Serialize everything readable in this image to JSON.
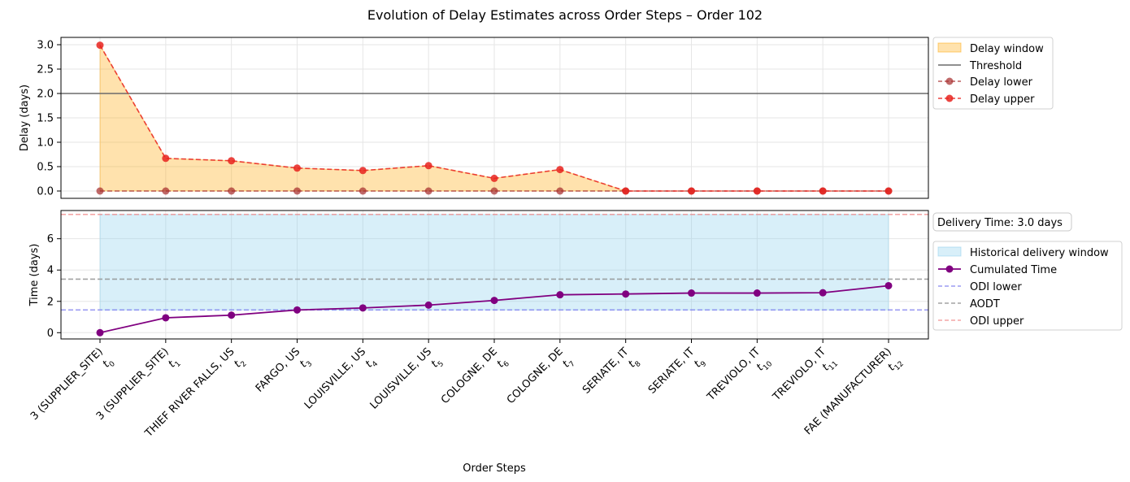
{
  "chart_data": {
    "type": "line",
    "title": "Evolution of Delay Estimates across Order Steps – Order 102",
    "xlabel": "Order Steps",
    "steps": [
      {
        "label": "3 (SUPPLIER_SITE)",
        "t": "t",
        "sub": "0",
        "color": "#b22222"
      },
      {
        "label": "3 (SUPPLIER_SITE)",
        "t": "t",
        "sub": "1",
        "color": "#000000"
      },
      {
        "label": "THIEF RIVER FALLS, US",
        "t": "t",
        "sub": "2",
        "color": "#000000"
      },
      {
        "label": "FARGO, US",
        "t": "t",
        "sub": "3",
        "color": "#000000"
      },
      {
        "label": "LOUISVILLE, US",
        "t": "t",
        "sub": "4",
        "color": "#000000"
      },
      {
        "label": "LOUISVILLE, US",
        "t": "t",
        "sub": "5",
        "color": "#000000"
      },
      {
        "label": "COLOGNE, DE",
        "t": "t",
        "sub": "6",
        "color": "#000000"
      },
      {
        "label": "COLOGNE, DE",
        "t": "t",
        "sub": "7",
        "color": "#000000"
      },
      {
        "label": "SERIATE, IT",
        "t": "t",
        "sub": "8",
        "color": "#000000"
      },
      {
        "label": "SERIATE, IT",
        "t": "t",
        "sub": "9",
        "color": "#000000"
      },
      {
        "label": "TREVIOLO, IT",
        "t": "t",
        "sub": "10",
        "color": "#000000"
      },
      {
        "label": "TREVIOLO, IT",
        "t": "t",
        "sub": "11",
        "color": "#000000"
      },
      {
        "label": "FAE (MANUFACTURER)",
        "t": "t",
        "sub": "12",
        "color": "#3a8a1e"
      }
    ],
    "top": {
      "ylabel": "Delay (days)",
      "ylim": [
        -0.15,
        3.15
      ],
      "yticks": [
        "0.0",
        "0.5",
        "1.0",
        "1.5",
        "2.0",
        "2.5",
        "3.0"
      ],
      "threshold": 2.0,
      "delay_lower": [
        0,
        0,
        0,
        0,
        0,
        0,
        0,
        0,
        0,
        0,
        0,
        0,
        0
      ],
      "delay_upper": [
        2.99,
        0.67,
        0.62,
        0.47,
        0.42,
        0.52,
        0.26,
        0.44,
        0,
        0,
        0,
        0,
        0
      ],
      "legend": [
        "Delay window",
        "Threshold",
        "Delay lower",
        "Delay upper"
      ],
      "colors": {
        "window": "#ffa500",
        "threshold": "#6b6b6b",
        "lower": "#a52a2a",
        "upper": "#e8231f"
      }
    },
    "bottom": {
      "ylabel": "Time (days)",
      "ylim": [
        -0.4,
        7.8
      ],
      "yticks": [
        "0",
        "2",
        "4",
        "6"
      ],
      "cumulated": [
        0,
        0.95,
        1.12,
        1.45,
        1.58,
        1.76,
        2.06,
        2.42,
        2.47,
        2.53,
        2.53,
        2.55,
        3.0
      ],
      "window_low": 1.45,
      "window_high": 7.55,
      "odi_lower": 1.45,
      "aodt": 3.42,
      "odi_upper": 7.55,
      "info_box": "Delivery Time: 3.0 days",
      "legend": [
        "Historical delivery window",
        "Cumulated Time",
        "ODI lower",
        "AODT",
        "ODI upper"
      ],
      "colors": {
        "window": "#87ceeb",
        "cumulated": "#800080",
        "odi_lower": "#7b7bee",
        "aodt": "#8c8c8c",
        "odi_upper": "#f08a8a"
      }
    }
  }
}
